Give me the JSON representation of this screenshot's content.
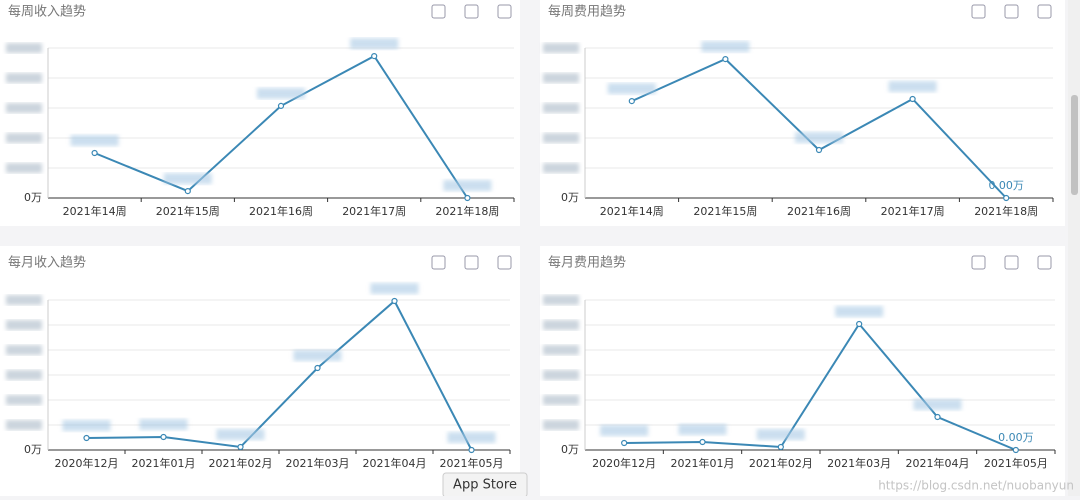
{
  "chart_data": [
    {
      "type": "line",
      "title": "每周收入趋势",
      "categories": [
        "2021年14周",
        "2021年15周",
        "2021年16周",
        "2021年17周",
        "2021年18周"
      ],
      "series": [
        {
          "color": "#3b88b5",
          "values": [
            1.5,
            0.23,
            3.07,
            4.73,
            0
          ],
          "value_labels": [
            null,
            null,
            null,
            null,
            null
          ]
        }
      ],
      "ylim": [
        0,
        5
      ],
      "yticks": [
        {
          "value": 0,
          "label": "0万"
        },
        1,
        2,
        3,
        4,
        5
      ],
      "grid": true
    },
    {
      "type": "line",
      "title": "每周费用趋势",
      "categories": [
        "2021年14周",
        "2021年15周",
        "2021年16周",
        "2021年17周",
        "2021年18周"
      ],
      "series": [
        {
          "color": "#3b88b5",
          "values": [
            3.23,
            4.63,
            1.6,
            3.3,
            0
          ],
          "value_labels": [
            null,
            null,
            null,
            null,
            "0.00万"
          ]
        }
      ],
      "ylim": [
        0,
        5
      ],
      "yticks": [
        {
          "value": 0,
          "label": "0万"
        },
        1,
        2,
        3,
        4,
        5
      ],
      "grid": true
    },
    {
      "type": "line",
      "title": "每月收入趋势",
      "categories": [
        "2020年12月",
        "2021年01月",
        "2021年02月",
        "2021年03月",
        "2021年04月",
        "2021年05月"
      ],
      "series": [
        {
          "color": "#3b88b5",
          "values": [
            0.48,
            0.52,
            0.12,
            3.28,
            5.96,
            0
          ],
          "value_labels": [
            null,
            null,
            null,
            null,
            null,
            null
          ]
        }
      ],
      "ylim": [
        0,
        6
      ],
      "yticks": [
        {
          "value": 0,
          "label": "0万"
        },
        1,
        2,
        3,
        4,
        5,
        6
      ],
      "grid": true
    },
    {
      "type": "line",
      "title": "每月费用趋势",
      "categories": [
        "2020年12月",
        "2021年01月",
        "2021年02月",
        "2021年03月",
        "2021年04月",
        "2021年05月"
      ],
      "series": [
        {
          "color": "#3b88b5",
          "values": [
            0.28,
            0.32,
            0.12,
            5.04,
            1.32,
            0
          ],
          "value_labels": [
            null,
            null,
            null,
            null,
            null,
            "0.00万"
          ]
        }
      ],
      "ylim": [
        0,
        6
      ],
      "yticks": [
        {
          "value": 0,
          "label": "0万"
        },
        1,
        2,
        3,
        4,
        5,
        6
      ],
      "grid": true
    }
  ],
  "tooltip": "App Store",
  "watermark": "https://blog.csdn.net/nuobanyun"
}
